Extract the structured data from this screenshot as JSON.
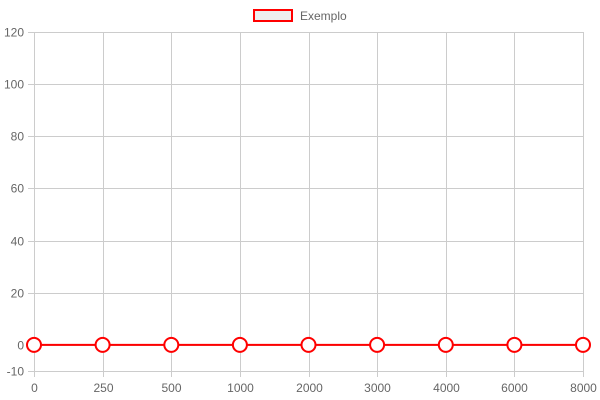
{
  "chart_data": {
    "type": "line",
    "categories": [
      "0",
      "250",
      "500",
      "1000",
      "2000",
      "3000",
      "4000",
      "6000",
      "8000"
    ],
    "series": [
      {
        "name": "Exemplo",
        "values": [
          0,
          0,
          0,
          0,
          0,
          0,
          0,
          0,
          0
        ],
        "color": "#ff0000",
        "fill": "#eeeeee",
        "point_fill": "#ffffff"
      }
    ],
    "title": "",
    "xlabel": "",
    "ylabel": "",
    "ylim": [
      -10,
      120
    ],
    "yticks": [
      -10,
      0,
      20,
      40,
      60,
      80,
      100,
      120
    ],
    "grid": true,
    "grid_color": "#cccccc",
    "tick_color": "#666666",
    "legend": {
      "position": "top-center"
    }
  }
}
